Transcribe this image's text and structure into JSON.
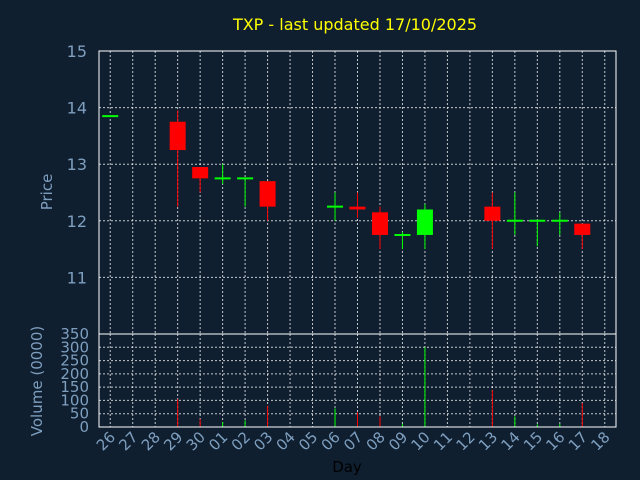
{
  "chart_data": {
    "type": "candlestick",
    "title": "TXP - last updated 17/10/2025",
    "xlabel": "Day",
    "price_panel": {
      "ylabel": "Price",
      "ylim": [
        10.0,
        15.0
      ],
      "yticks": [
        "11",
        "12",
        "13",
        "14",
        "15"
      ]
    },
    "volume_panel": {
      "ylabel": "Volume (0000)",
      "ylim": [
        0,
        350
      ],
      "yticks": [
        "0",
        "50",
        "100",
        "150",
        "200",
        "250",
        "300",
        "350"
      ]
    },
    "categories": [
      "26",
      "27",
      "28",
      "29",
      "30",
      "01",
      "02",
      "03",
      "04",
      "05",
      "06",
      "07",
      "08",
      "09",
      "10",
      "11",
      "12",
      "13",
      "14",
      "15",
      "16",
      "17",
      "18"
    ],
    "candles": [
      {
        "day": "26",
        "open": 13.85,
        "close": 13.85,
        "high": 13.85,
        "low": 13.85,
        "volume": 0
      },
      {
        "day": "29",
        "open": 13.75,
        "close": 13.25,
        "high": 13.95,
        "low": 12.25,
        "volume": 105
      },
      {
        "day": "30",
        "open": 12.95,
        "close": 12.75,
        "high": 12.95,
        "low": 12.5,
        "volume": 30
      },
      {
        "day": "01",
        "open": 12.75,
        "close": 12.75,
        "high": 13.0,
        "low": 12.65,
        "volume": 18
      },
      {
        "day": "02",
        "open": 12.75,
        "close": 12.75,
        "high": 12.75,
        "low": 12.25,
        "volume": 25
      },
      {
        "day": "03",
        "open": 12.7,
        "close": 12.25,
        "high": 12.7,
        "low": 12.0,
        "volume": 80
      },
      {
        "day": "06",
        "open": 12.25,
        "close": 12.25,
        "high": 12.5,
        "low": 12.0,
        "volume": 70
      },
      {
        "day": "07",
        "open": 12.25,
        "close": 12.2,
        "high": 12.5,
        "low": 12.05,
        "volume": 55
      },
      {
        "day": "08",
        "open": 12.15,
        "close": 11.75,
        "high": 12.25,
        "low": 11.5,
        "volume": 40
      },
      {
        "day": "09",
        "open": 11.75,
        "close": 11.75,
        "high": 11.8,
        "low": 11.5,
        "volume": 12
      },
      {
        "day": "10",
        "open": 11.75,
        "close": 12.2,
        "high": 12.3,
        "low": 11.5,
        "volume": 300
      },
      {
        "day": "13",
        "open": 12.25,
        "close": 12.0,
        "high": 12.5,
        "low": 11.5,
        "volume": 140
      },
      {
        "day": "14",
        "open": 12.0,
        "close": 12.0,
        "high": 12.5,
        "low": 11.75,
        "volume": 40
      },
      {
        "day": "15",
        "open": 12.0,
        "close": 12.0,
        "high": 12.0,
        "low": 11.55,
        "volume": 10
      },
      {
        "day": "16",
        "open": 12.0,
        "close": 12.0,
        "high": 12.15,
        "low": 11.75,
        "volume": 12
      },
      {
        "day": "17",
        "open": 11.95,
        "close": 11.75,
        "high": 11.95,
        "low": 11.5,
        "volume": 90
      }
    ],
    "up_color": "#00ff00",
    "down_color": "#ff0000",
    "grid": true
  }
}
